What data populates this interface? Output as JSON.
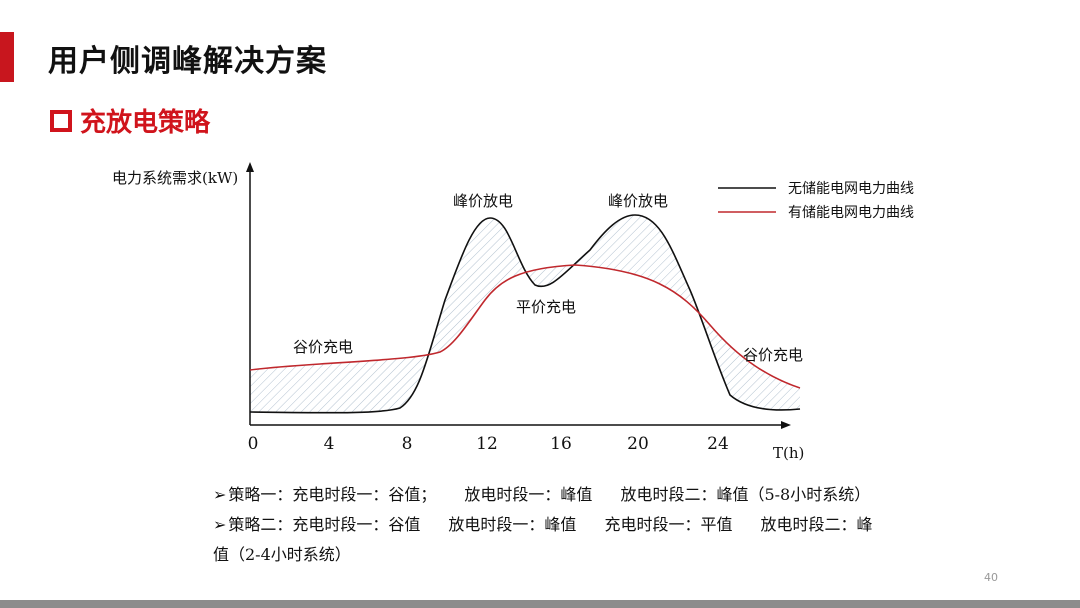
{
  "header": {
    "title": "用户侧调峰解决方案",
    "section": "充放电策略",
    "section_icon": "hollow-square-icon",
    "accent_color": "#c8161e"
  },
  "diagram": {
    "y_label": "电力系统需求(kW)",
    "x_label": "T(h)",
    "x_ticks": [
      "0",
      "4",
      "8",
      "12",
      "16",
      "20",
      "24"
    ],
    "annotations": {
      "valley_left": "谷价充电",
      "peak_left": "峰价放电",
      "flat": "平价充电",
      "peak_right": "峰价放电",
      "valley_right": "谷价充电"
    },
    "legend": [
      {
        "label": "无储能电网电力曲线",
        "color": "#111111"
      },
      {
        "label": "有储能电网电力曲线",
        "color": "#c0282d"
      }
    ]
  },
  "strategies": {
    "line1": {
      "name": "策略一：充电时段一：谷值；",
      "seg2": "放电时段一：峰值",
      "seg3": "放电时段二：峰值（5-8小时系统）"
    },
    "line2": {
      "name": "策略二：充电时段一：谷值",
      "seg2": "放电时段一：峰值",
      "seg3": "充电时段一：平值",
      "seg4": "放电时段二：峰"
    },
    "line3": "值（2-4小时系统）",
    "bullet_icon": "arrow-bullet-icon"
  },
  "page_number": "40"
}
